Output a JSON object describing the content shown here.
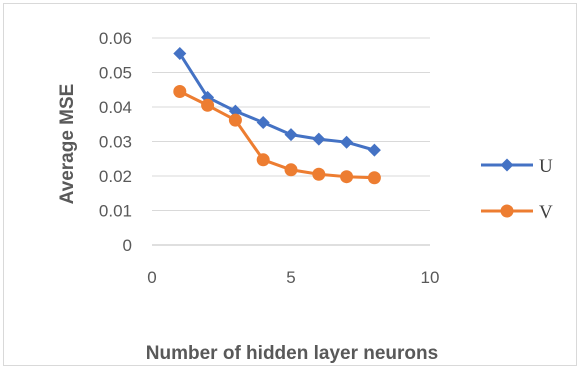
{
  "chart_data": {
    "type": "line",
    "title": "",
    "xlabel": "Number of hidden layer neurons",
    "ylabel": "Average MSE",
    "xlim": [
      0,
      10
    ],
    "ylim": [
      0,
      0.06
    ],
    "xticks": [
      "0",
      "5",
      "10"
    ],
    "yticks": [
      "0",
      "0.01",
      "0.02",
      "0.03",
      "0.04",
      "0.05",
      "0.06"
    ],
    "grid": "horizontal",
    "legend_position": "right",
    "series": [
      {
        "name": "U",
        "color": "#4472c4",
        "marker": "diamond",
        "x": [
          1,
          2,
          3,
          4,
          5,
          6,
          7,
          8
        ],
        "values": [
          0.0555,
          0.0428,
          0.0388,
          0.0355,
          0.032,
          0.0307,
          0.0298,
          0.0275
        ]
      },
      {
        "name": "V",
        "color": "#ed7d31",
        "marker": "circle",
        "x": [
          1,
          2,
          3,
          4,
          5,
          6,
          7,
          8
        ],
        "values": [
          0.0445,
          0.0405,
          0.0362,
          0.0247,
          0.0218,
          0.0205,
          0.0198,
          0.0195
        ]
      }
    ]
  }
}
